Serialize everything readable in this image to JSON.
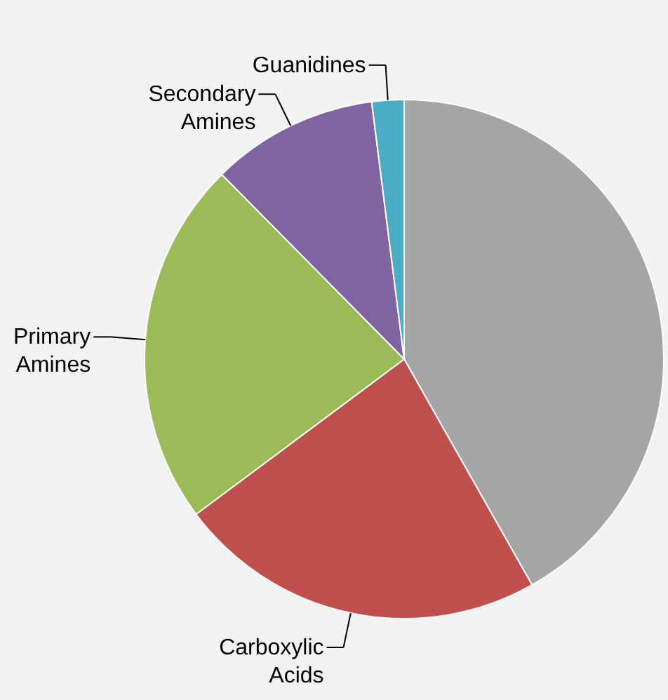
{
  "chart_data": {
    "type": "pie",
    "categories": [
      null,
      "Carboxylic Acids",
      "Primary Amines",
      "Secondary Amines",
      "Guanidines"
    ],
    "values": [
      41.8,
      23,
      22.8,
      10.4,
      2
    ],
    "colors": [
      "#a5a5a5",
      "#c0504d",
      "#9bbb59",
      "#8064a2",
      "#4bacc6"
    ]
  }
}
